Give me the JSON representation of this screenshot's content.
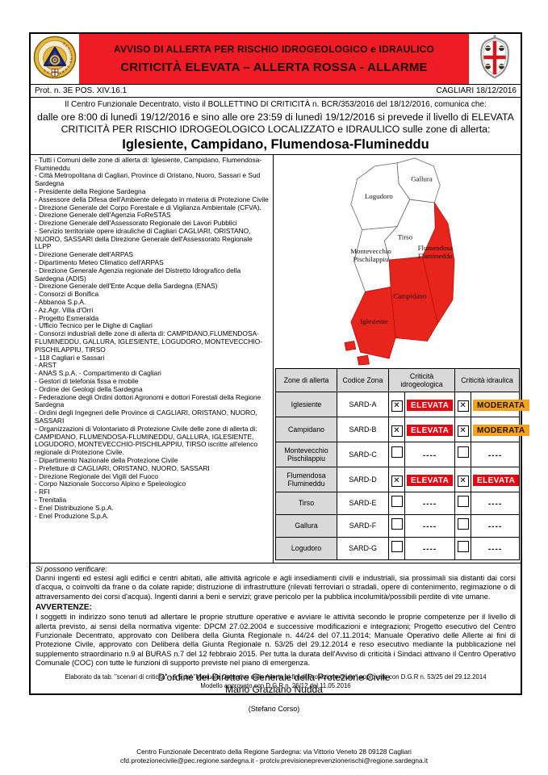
{
  "colors": {
    "banner_red": "#ee1c24",
    "badge_red": "#e30613",
    "badge_orange": "#f6a21c",
    "table_gray": "#d9d9d9",
    "map_red": "#e8251d"
  },
  "header": {
    "title_line1": "AVVISO DI ALLERTA PER RISCHIO IDROGEOLOGICO e IDRAULICO",
    "title_line2": "CRITICITÀ ELEVATA – ALLERTA ROSSA - ALLARME",
    "left_logo": "Regione Sardegna - Protezione Civile",
    "right_logo": "Regione Autonoma della Sardegna - Quattro Mori"
  },
  "prot": {
    "number": "Prot. n. 3E POS. XIV.16.1",
    "place_date": "CAGLIARI 18/12/2016"
  },
  "intro": {
    "line1": "Il Centro Funzionale Decentrato, visto il BOLLETTINO DI CRITICITÀ n. BCR/353/2016 del 18/12/2016, comunica che:",
    "line2": "dalle ore 8:00 di lunedì 19/12/2016 e sino alle ore 23:59 di lunedì 19/12/2016 si prevede il livello di ELEVATA CRITICITÀ PER RISCHIO IDROGEOLOGICO LOCALIZZATO e IDRAULICO sulle zone di allerta:",
    "zones_headline": "Iglesiente, Campidano, Flumendosa-Flumineddu"
  },
  "recipients": [
    "- Tutti i Comuni delle zone di allerta di: Iglesiente, Campidano, Flumendosa-Flumineddu",
    "- Città Metropolitana di Cagliari, Province di Oristano, Nuoro, Sassari e Sud Sardegna",
    "- Presidente della Regione Sardegna",
    "- Assessore della Difesa dell'Ambiente delegato in materia di Protezione Civile",
    "- Direzione Generale del Corpo Forestale e di Vigilanza Ambientale (CFVA).",
    "- Direzione Generale dell'Agenzia FoReSTAS",
    "- Direzione Generale dell'Assessorato Regionale dei Lavori Pubblici",
    "- Servizio territoriale opere idrauliche di Cagliari CAGLIARI, ORISTANO, NUORO, SASSARI della Direzione Generale dell'Assessorato Regionale LLPP",
    "- Direzione Generale dell'ARPAS",
    "- Dipartimento Meteo Climatico dell'ARPAS",
    "- Direzione Generale Agenzia regionale del Distretto Idrografico della Sardegna (ADIS)",
    "- Direzione Generale dell'Ente Acque della Sardegna (ENAS)",
    "- Consorzi di Bonifica",
    "- Abbanoa S.p.A.",
    "- Az.Agr. Villa d'Orri",
    "- Progetto Esmeralda",
    "- Ufficio Tecnico per le Dighe di Cagliari",
    "- Consorzi industriali delle zone di allerta di: CAMPIDANO,FLUMENDOSA-FLUMINEDDU, GALLURA, IGLESIENTE, LOGUDORO, MONTEVECCHIO-PISCHILAPPIU, TIRSO",
    "- 118 Cagliari e Sassari",
    "- ARST",
    "- ANAS S.p.A. - Compartimento di Cagliari",
    "- Gestori di telefonia fissa e mobile",
    "- Ordine dei Geologi della Sardegna",
    "- Federazione degli Ordini dottori Agronomi e dottori Forestali della Regione Sardegna",
    "- Ordini degli Ingegneri delle Province di CAGLIARI, ORISTANO, NUORO, SASSARI",
    "- Organizzazioni di Volontariato di Protezione Civile delle zone di allerta di: CAMPIDANO, FLUMENDOSA-FLUMINEDDU, GALLURA, IGLESIENTE, LOGUDORO, MONTEVECCHIO-PISCHILAPPIU, TIRSO iscritte all'elenco regionale di Protezione Civile.",
    "- Dipartimento Nazionale della Protezione Civile",
    "- Prefetture di CAGLIARI, ORISTANO, NUORO, SASSARI",
    "- Direzione Regionale dei Vigili del Fuoco",
    "- Corpo Nazionale Soccorso Alpino e Speleologico",
    "- RFI",
    "- Trenitalia",
    "- Enel Distribuzione S.p.A.",
    "- Enel Produzione S.p.A."
  ],
  "map": {
    "zones": [
      {
        "id": "gallura",
        "label_lines": [
          "Gallura"
        ],
        "alert": false
      },
      {
        "id": "logudoro",
        "label_lines": [
          "Logudoro"
        ],
        "alert": false
      },
      {
        "id": "tirso",
        "label_lines": [
          "Tirso"
        ],
        "alert": false
      },
      {
        "id": "montevecchio",
        "label_lines": [
          "Montevecchio",
          "Pischilappiu"
        ],
        "alert": false
      },
      {
        "id": "flumendosa",
        "label_lines": [
          "Flumendosa",
          "Flumineddu"
        ],
        "alert": true
      },
      {
        "id": "campidano",
        "label_lines": [
          "Campidano"
        ],
        "alert": true
      },
      {
        "id": "iglesiente",
        "label_lines": [
          "Iglesiente"
        ],
        "alert": true
      }
    ]
  },
  "table": {
    "headers": [
      "Zone di allerta",
      "Codice Zona",
      "Criticità idrogeologica",
      "Criticità idraulica"
    ],
    "rows": [
      {
        "zone": "Iglesiente",
        "code": "SARD-A",
        "idro": {
          "checked": true,
          "label": "ELEVATA"
        },
        "idra": {
          "checked": true,
          "label": "MODERATA"
        },
        "tall": true
      },
      {
        "zone": "Campidano",
        "code": "SARD-B",
        "idro": {
          "checked": true,
          "label": "ELEVATA"
        },
        "idra": {
          "checked": true,
          "label": "MODERATA"
        },
        "tall": true
      },
      {
        "zone": "Montevecchio Pischilappiu",
        "code": "SARD-C",
        "idro": {
          "checked": false,
          "label": "----"
        },
        "idra": {
          "checked": false,
          "label": "----"
        },
        "tall": true
      },
      {
        "zone": "Flumendosa Flumineddu",
        "code": "SARD-D",
        "idro": {
          "checked": true,
          "label": "ELEVATA"
        },
        "idra": {
          "checked": true,
          "label": "ELEVATA"
        },
        "tall": true
      },
      {
        "zone": "Tirso",
        "code": "SARD-E",
        "idro": {
          "checked": false,
          "label": "----"
        },
        "idra": {
          "checked": false,
          "label": "----"
        },
        "tall": false
      },
      {
        "zone": "Gallura",
        "code": "SARD-F",
        "idro": {
          "checked": false,
          "label": "----"
        },
        "idra": {
          "checked": false,
          "label": "----"
        },
        "tall": false
      },
      {
        "zone": "Logudoro",
        "code": "SARD-G",
        "idro": {
          "checked": false,
          "label": "----"
        },
        "idra": {
          "checked": false,
          "label": "----"
        },
        "tall": false
      }
    ]
  },
  "verify": {
    "label": "Si possono verificare:",
    "text": "Danni ingenti ed estesi agli edifici e centri abitati, alle attività agricole e agli insediamenti civili e industriali, sia prossimali sia distanti dai corsi d'acqua, o coinvolti da frane o da colate rapide; distruzione di infrastrutture (rilevati ferroviari o stradali, opere di contenimento, regimazione o di attraversamento dei corsi d'acqua). Ingenti danni a beni e servizi; grave pericolo per la pubblica incolumità/possibili perdite di vite umane."
  },
  "avvertenze": {
    "label": "AVVERTENZE:",
    "text": "I soggetti in indirizzo sono tenuti ad allertare le proprie strutture operative e avviare le attività secondo le proprie competenze per il livello di allerta previsto, ai sensi della normativa vigente: DPCM 27.02.2004 e successive modificazioni e integrazioni; Progetto esecutivo del Centro Funzionale Decentrato, approvato con Delibera della Giunta Regionale n. 44/24 del 07.11.2014; Manuale Operativo delle Allerte ai fini di Protezione Civile, approvato con Delibera della Giunta Regionale n. 53/25 del 29.12.2014 e reso esecutivo mediante la pubblicazione nel supplemento straordinario n.9 al BURAS n.7 del 12 febbraio 2015. Per tutta la durata dell'Avviso di criticità i Sindaci attivano il Centro Operativo Comunale (COC) con tutte le funzioni di supporto previste nel piano di emergenza."
  },
  "note": {
    "line1": "Elaborato da tab. \"scenari di criticità\" - § 5 del \"Manuale Operativo delle Allerte ai fini di Protezione Civile\" approvato con D.G.R n. 53/25 del 29.12.2014",
    "line2": "Modello approvato con D.G.R n. 26/12 del 11.05.2016"
  },
  "signature": {
    "line1": "D'ordine del Direttore Generale della Protezione Civile",
    "line2": "Mario Graziano Nudda",
    "line3": "(Stefano Corso)"
  },
  "footer": {
    "line1": "Centro Funzionale Decentrato della Regione Sardegna: via Vittorio Veneto 28 09128 Cagliari",
    "line2": "cfd.protezionecivile@pec.regione.sardegna.it - protciv.previsioneprevenzionerischi@regione.sardegna.it"
  }
}
